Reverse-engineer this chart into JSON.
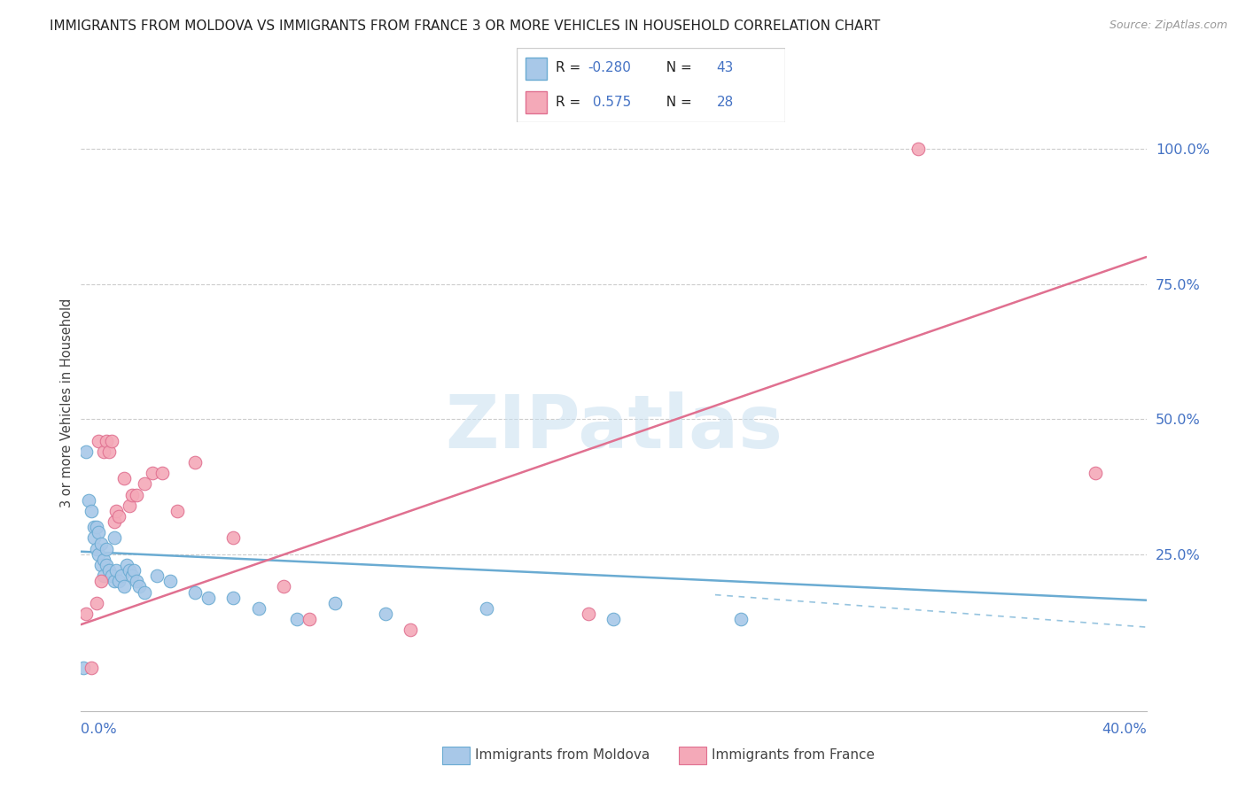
{
  "title": "IMMIGRANTS FROM MOLDOVA VS IMMIGRANTS FROM FRANCE 3 OR MORE VEHICLES IN HOUSEHOLD CORRELATION CHART",
  "source": "Source: ZipAtlas.com",
  "ylabel": "3 or more Vehicles in Household",
  "moldova_color": "#a8c8e8",
  "moldova_edge": "#6aabd2",
  "france_color": "#f4a9b8",
  "france_edge": "#e07090",
  "moldova_line_color": "#6aabd2",
  "france_line_color": "#e07090",
  "moldova_R": -0.28,
  "moldova_N": 43,
  "france_R": 0.575,
  "france_N": 28,
  "xlim": [
    0.0,
    0.42
  ],
  "ylim": [
    -0.04,
    1.1
  ],
  "y_ticks": [
    0.0,
    0.25,
    0.5,
    0.75,
    1.0
  ],
  "moldova_x": [
    0.001,
    0.002,
    0.003,
    0.004,
    0.005,
    0.005,
    0.006,
    0.006,
    0.007,
    0.007,
    0.008,
    0.008,
    0.009,
    0.009,
    0.01,
    0.01,
    0.011,
    0.012,
    0.013,
    0.013,
    0.014,
    0.015,
    0.016,
    0.017,
    0.018,
    0.019,
    0.02,
    0.021,
    0.022,
    0.023,
    0.025,
    0.03,
    0.035,
    0.045,
    0.05,
    0.06,
    0.07,
    0.085,
    0.1,
    0.12,
    0.16,
    0.21,
    0.26
  ],
  "moldova_y": [
    0.04,
    0.44,
    0.35,
    0.33,
    0.3,
    0.28,
    0.3,
    0.26,
    0.29,
    0.25,
    0.27,
    0.23,
    0.24,
    0.21,
    0.26,
    0.23,
    0.22,
    0.21,
    0.28,
    0.2,
    0.22,
    0.2,
    0.21,
    0.19,
    0.23,
    0.22,
    0.21,
    0.22,
    0.2,
    0.19,
    0.18,
    0.21,
    0.2,
    0.18,
    0.17,
    0.17,
    0.15,
    0.13,
    0.16,
    0.14,
    0.15,
    0.13,
    0.13
  ],
  "france_x": [
    0.002,
    0.004,
    0.006,
    0.007,
    0.008,
    0.009,
    0.01,
    0.011,
    0.012,
    0.013,
    0.014,
    0.015,
    0.017,
    0.019,
    0.02,
    0.022,
    0.025,
    0.028,
    0.032,
    0.038,
    0.045,
    0.06,
    0.08,
    0.09,
    0.13,
    0.2,
    0.33,
    0.4
  ],
  "france_y": [
    0.14,
    0.04,
    0.16,
    0.46,
    0.2,
    0.44,
    0.46,
    0.44,
    0.46,
    0.31,
    0.33,
    0.32,
    0.39,
    0.34,
    0.36,
    0.36,
    0.38,
    0.4,
    0.4,
    0.33,
    0.42,
    0.28,
    0.19,
    0.13,
    0.11,
    0.14,
    1.0,
    0.4
  ],
  "moldova_reg": [
    0.0,
    0.42,
    0.255,
    0.165
  ],
  "moldova_dash": [
    0.25,
    0.52,
    0.175,
    0.08
  ],
  "france_reg": [
    0.0,
    0.42,
    0.12,
    0.8
  ],
  "watermark_text": "ZIPatlas",
  "watermark_color": "#c8dff0",
  "legend_moldova_text": "R = -0.280   N = 43",
  "legend_france_text": "R =  0.575   N = 28",
  "bottom_legend_moldova": "Immigrants from Moldova",
  "bottom_legend_france": "Immigrants from France"
}
